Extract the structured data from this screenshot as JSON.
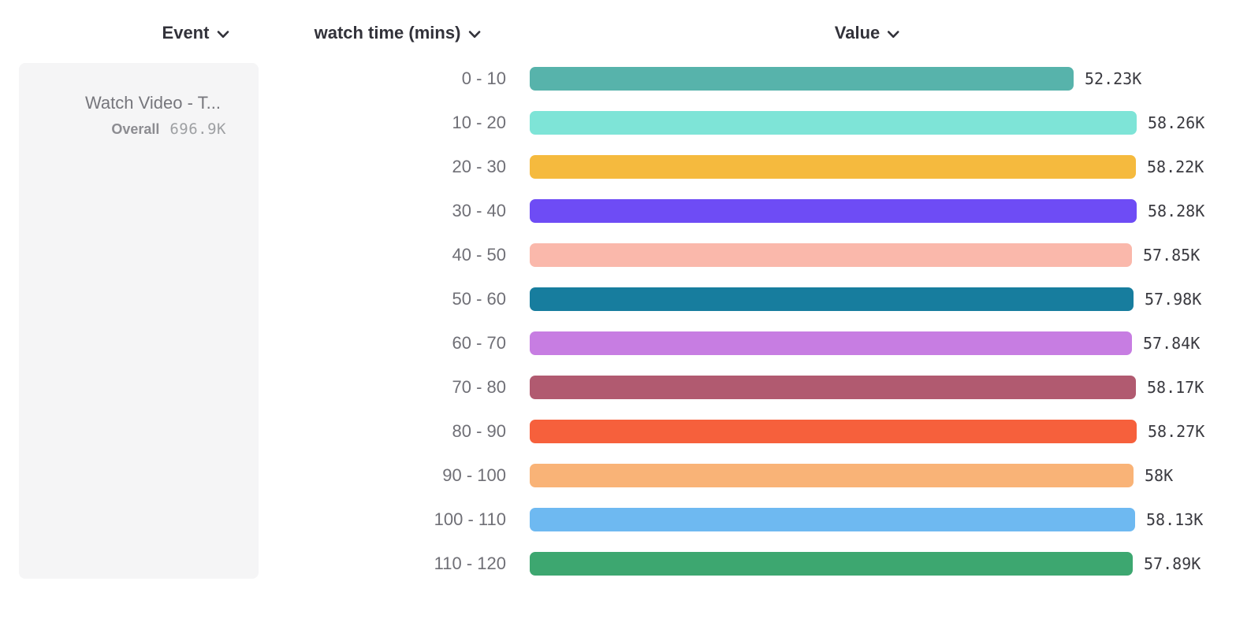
{
  "header": {
    "columns": [
      {
        "label": "Event"
      },
      {
        "label": "watch time (mins)"
      },
      {
        "label": "Value"
      }
    ]
  },
  "legend_card": {
    "event_name": "Watch Video - T...",
    "overall_label": "Overall",
    "overall_value": "696.9K"
  },
  "chart_data": {
    "type": "bar",
    "orientation": "horizontal",
    "title": "",
    "xlabel": "Value",
    "ylabel": "watch time (mins)",
    "xlim": [
      0,
      58280
    ],
    "grid": false,
    "categories": [
      "0 - 10",
      "10 - 20",
      "20 - 30",
      "30 - 40",
      "40 - 50",
      "50 - 60",
      "60 - 70",
      "70 - 80",
      "80 - 90",
      "90 - 100",
      "100 - 110",
      "110 - 120"
    ],
    "values": [
      52230,
      58260,
      58220,
      58280,
      57850,
      57980,
      57840,
      58170,
      58270,
      58000,
      58130,
      57890
    ],
    "value_labels": [
      "52.23K",
      "58.26K",
      "58.22K",
      "58.28K",
      "57.85K",
      "57.98K",
      "57.84K",
      "58.17K",
      "58.27K",
      "58K",
      "58.13K",
      "57.89K"
    ],
    "colors": [
      "#57b3ab",
      "#7ee4d7",
      "#f5ba3e",
      "#6e4cf5",
      "#fab8ab",
      "#177d9e",
      "#c77de2",
      "#b15a70",
      "#f6603c",
      "#f9b377",
      "#6eb9f1",
      "#3da770"
    ]
  }
}
